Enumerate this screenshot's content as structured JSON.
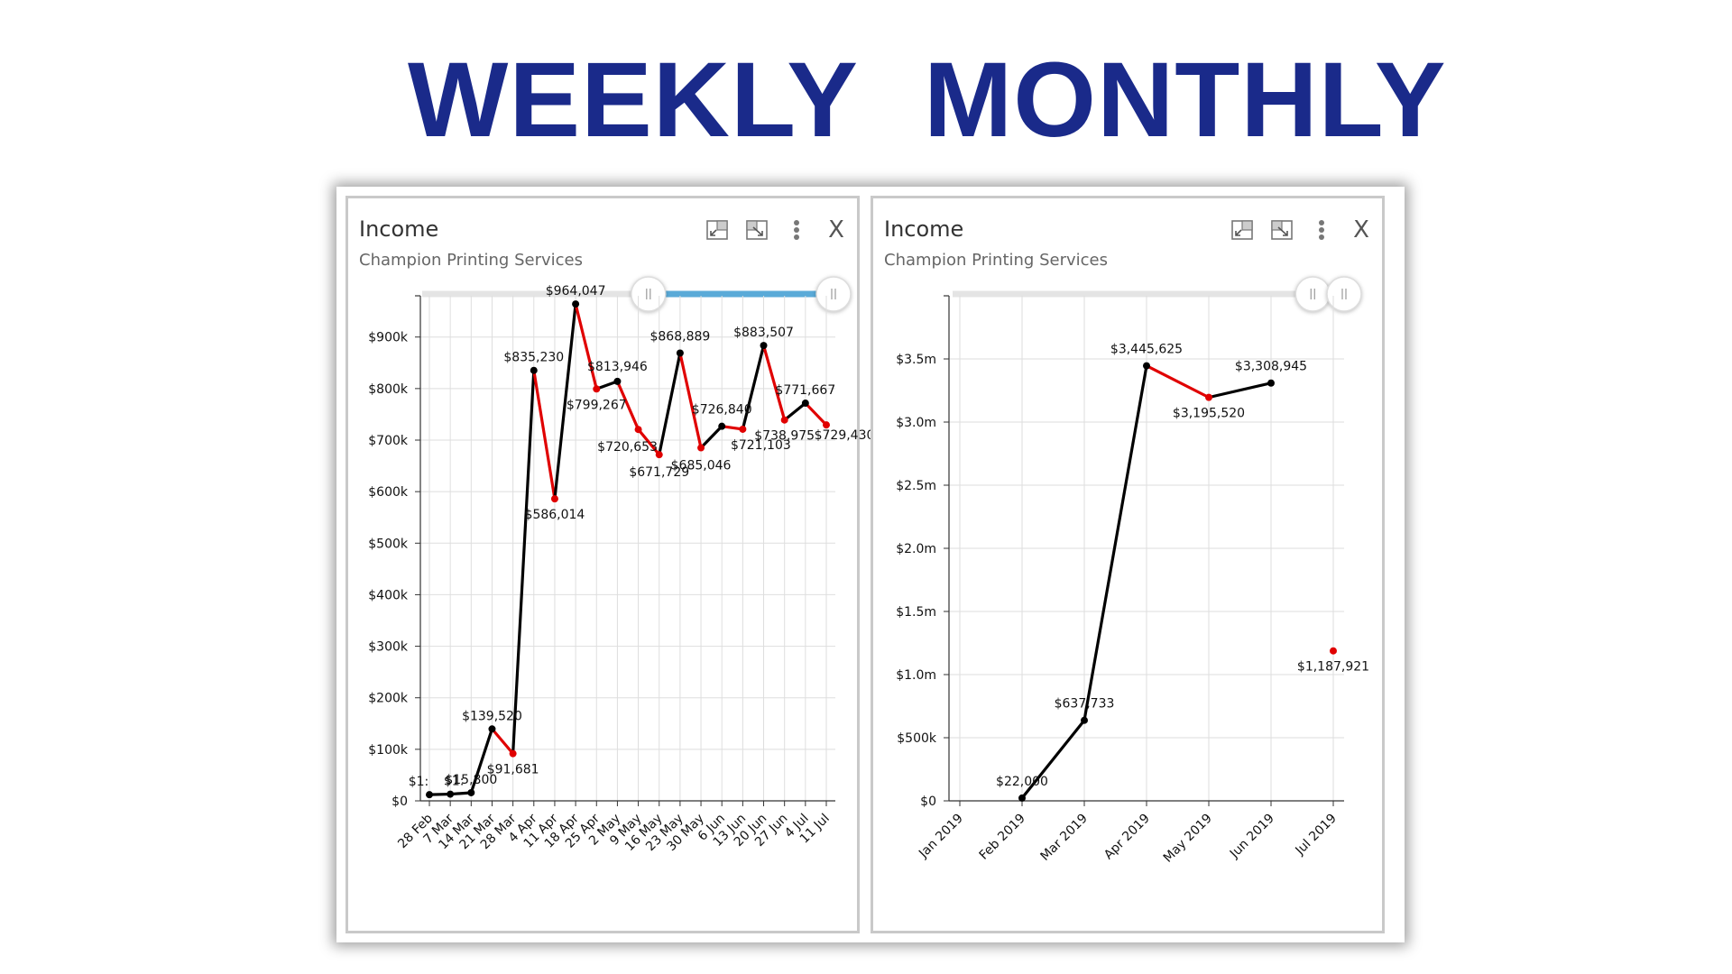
{
  "headings": {
    "weekly": "WEEKLY",
    "monthly": "MONTHLY"
  },
  "panels": [
    {
      "title": "Income",
      "subtitle": "Champion Printing Services"
    },
    {
      "title": "Income",
      "subtitle": "Champion Printing Services"
    }
  ],
  "toolbar": {
    "close_label": "X"
  },
  "colors": {
    "heading": "#1a2a8a",
    "increase": "#000000",
    "decrease": "#e00000",
    "slider": "#5aaad8"
  },
  "chart_data": [
    {
      "type": "line",
      "title": "Income",
      "subtitle": "Champion Printing Services",
      "categories": [
        "28 Feb",
        "7 Mar",
        "14 Mar",
        "21 Mar",
        "28 Mar",
        "4 Apr",
        "11 Apr",
        "18 Apr",
        "25 Apr",
        "2 May",
        "9 May",
        "16 May",
        "23 May",
        "30 May",
        "6 Jun",
        "13 Jun",
        "20 Jun",
        "27 Jun",
        "4 Jul",
        "11 Jul"
      ],
      "values": [
        12000,
        13000,
        15800,
        139520,
        91681,
        835230,
        586014,
        964047,
        799267,
        813946,
        720653,
        671729,
        868889,
        685046,
        726840,
        721103,
        883507,
        738975,
        771667,
        729430
      ],
      "labels": [
        "$1:",
        "$1:",
        "$15,800",
        "$139,520",
        "$91,681",
        "$835,230",
        "$586,014",
        "$964,047",
        "$799,267",
        "$813,946",
        "$720,653",
        "$671,729",
        "$868,889",
        "$685,046",
        "$726,840",
        "$721,103",
        "$883,507",
        "$738,975",
        "$771,667",
        "$729,430"
      ],
      "ylim": [
        0,
        980000
      ],
      "yticks": [
        0,
        100000,
        200000,
        300000,
        400000,
        500000,
        600000,
        700000,
        800000,
        900000
      ],
      "ytick_labels": [
        "$0",
        "$100k",
        "$200k",
        "$300k",
        "$400k",
        "$500k",
        "$600k",
        "$700k",
        "$800k",
        "$900k"
      ],
      "grid": true,
      "range_selector": {
        "start": 0.55,
        "end": 1.0
      }
    },
    {
      "type": "line",
      "title": "Income",
      "subtitle": "Champion Printing Services",
      "categories": [
        "Jan 2019",
        "Feb 2019",
        "Mar 2019",
        "Apr 2019",
        "May 2019",
        "Jun 2019",
        "Jul 2019"
      ],
      "points": [
        {
          "x": "Feb 2019",
          "value": 22000,
          "label": "$22,000"
        },
        {
          "x": "Mar 2019",
          "value": 637733,
          "label": "$637,733"
        },
        {
          "x": "Apr 2019",
          "value": 3445625,
          "label": "$3,445,625"
        },
        {
          "x": "May 2019",
          "value": 3195520,
          "label": "$3,195,520"
        },
        {
          "x": "Jun 2019",
          "value": 3308945,
          "label": "$3,308,945"
        },
        {
          "x": "Jul 2019",
          "value": 1187921,
          "label": "$1,187,921",
          "connected": false
        }
      ],
      "ylim": [
        0,
        4000000
      ],
      "yticks": [
        0,
        500000,
        1000000,
        1500000,
        2000000,
        2500000,
        3000000,
        3500000
      ],
      "ytick_labels": [
        "$0",
        "$500k",
        "$1.0m",
        "$1.5m",
        "$2.0m",
        "$2.5m",
        "$3.0m",
        "$3.5m"
      ],
      "grid": true,
      "range_selector": {
        "start": 0.92,
        "end": 1.0
      }
    }
  ]
}
